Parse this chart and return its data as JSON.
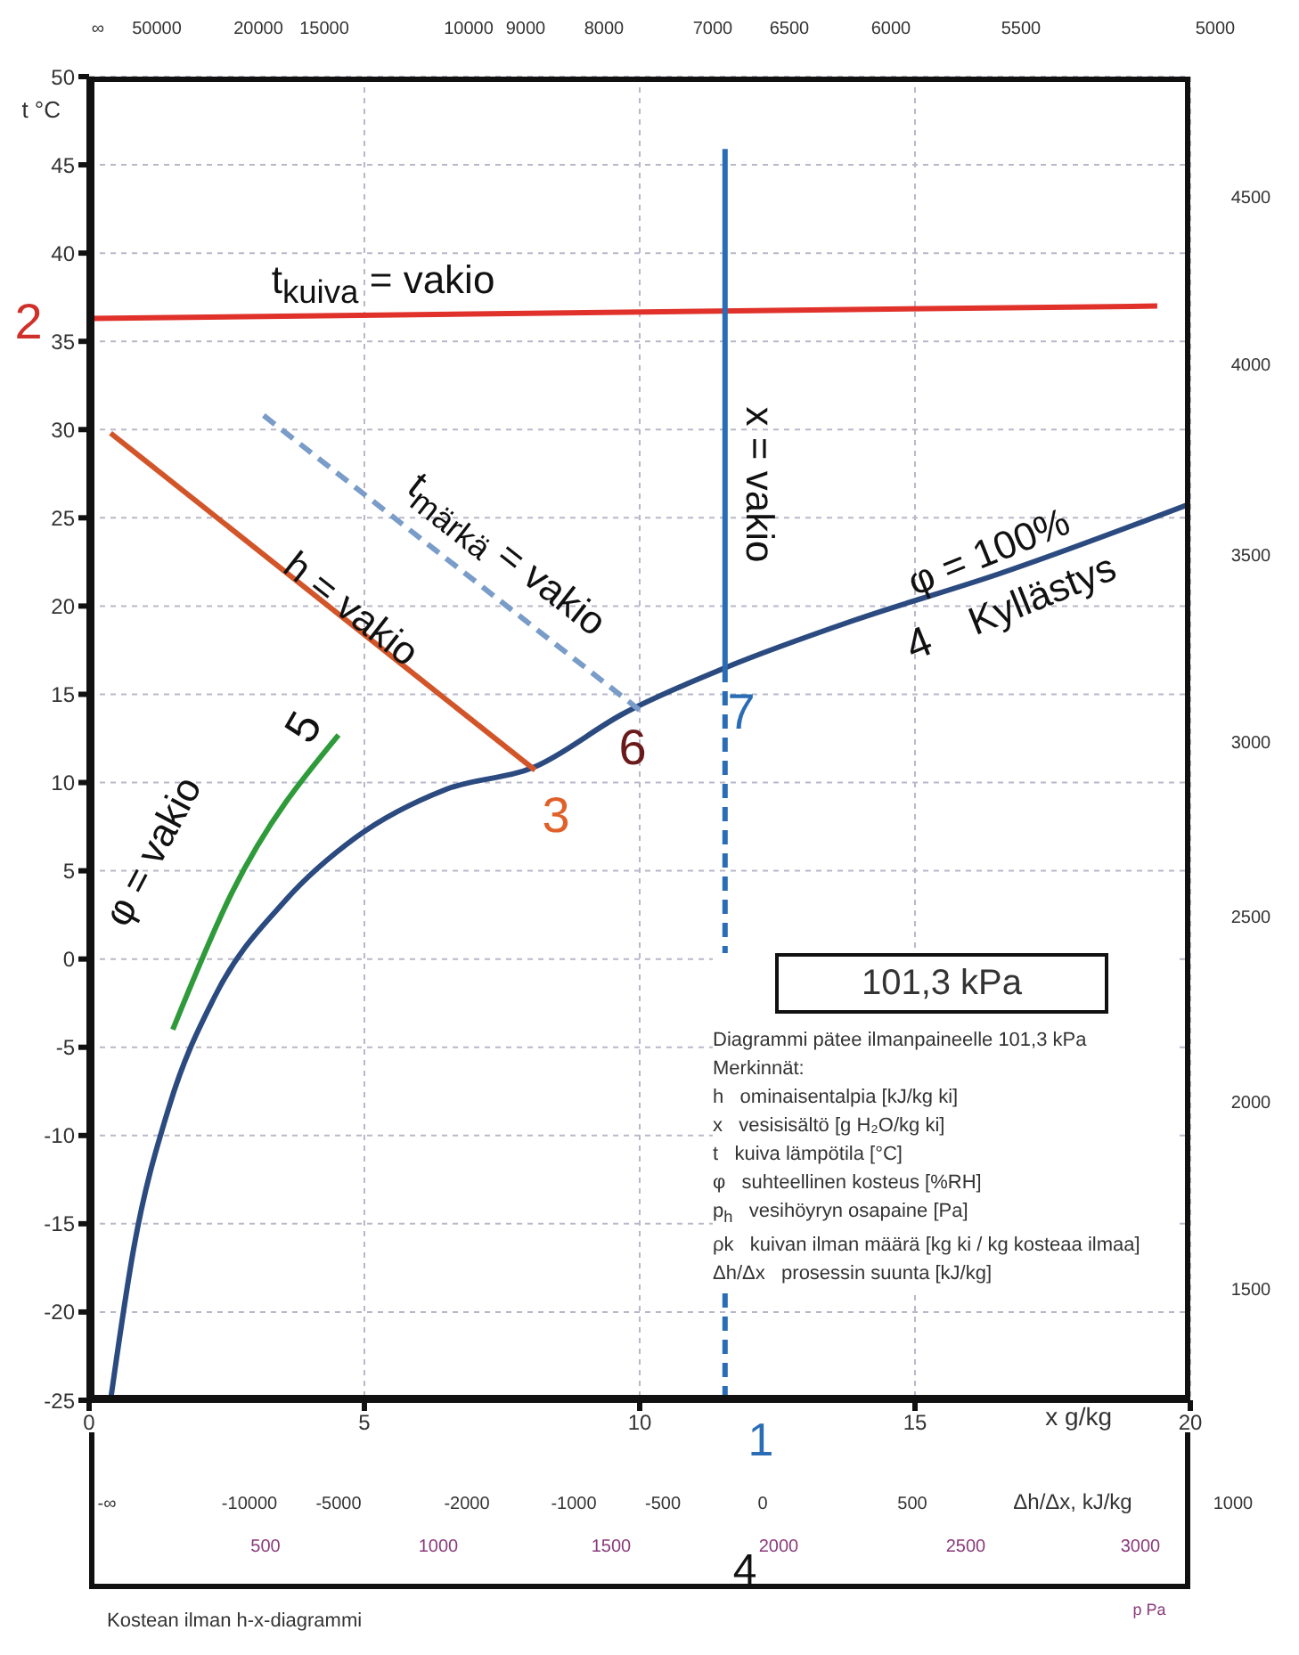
{
  "chart_data": {
    "type": "line",
    "ylabel": "t °C",
    "xlabel": "x g/kg",
    "xlim": [
      0,
      20
    ],
    "xticks": [
      0,
      5,
      10,
      15,
      20
    ],
    "ylim": [
      -25,
      50
    ],
    "yticks": [
      -25,
      -20,
      -15,
      -10,
      -5,
      0,
      5,
      10,
      15,
      20,
      25,
      30,
      35,
      40,
      45,
      50
    ],
    "grid": true,
    "marker": "none",
    "series": [
      {
        "color": "#2b4a80",
        "line_style": "solid",
        "x": [
          0.39,
          0.81,
          1.46,
          2.27,
          3.56,
          4.85,
          6.47,
          8.1,
          9.7,
          11.55,
          13.9,
          16.5,
          20
        ],
        "values": [
          -25,
          -16.4,
          -8.3,
          -2.2,
          3.3,
          6.9,
          9.6,
          10.9,
          13.9,
          16.5,
          19.2,
          21.8,
          25.8
        ]
      },
      {
        "color": "#e0312a",
        "line_style": "solid",
        "x": [
          0.06,
          19.4
        ],
        "values": [
          36.3,
          37
        ]
      },
      {
        "color": "#2a6db5",
        "line_style": "solid",
        "x": [
          11.55,
          11.55
        ],
        "values": [
          16.5,
          45.9
        ]
      },
      {
        "color": "#2a6db5",
        "line_style": "dashed",
        "x": [
          11.55,
          11.55
        ],
        "values": [
          -25,
          16.5
        ]
      },
      {
        "color": "#d2552a",
        "line_style": "solid",
        "x": [
          0.39,
          8.1
        ],
        "values": [
          29.8,
          10.7
        ]
      },
      {
        "color": "#7a9cc8",
        "line_style": "dashed",
        "x": [
          3.17,
          10.0
        ],
        "values": [
          30.8,
          14.1
        ]
      },
      {
        "color": "#2e9a3a",
        "line_style": "solid",
        "x": [
          1.52,
          2.6,
          4.53
        ],
        "values": [
          -4.0,
          3.8,
          12.7
        ]
      }
    ],
    "annotations": [
      "t$_{kuiva}$ = vakio",
      "h = vakio",
      "t$_{märkä}$ = vakio",
      "x = vakio",
      "φ = 100%",
      "4",
      "Kyllästys",
      "φ = vakio",
      "2",
      "3",
      "5",
      "6",
      "7",
      "1",
      "4",
      "∞",
      "50000",
      "20000",
      "15000",
      "10000",
      "9000",
      "8000",
      "7000",
      "6500",
      "6000",
      "5500",
      "5000",
      "4500",
      "4000",
      "3500",
      "3000",
      "2500",
      "2000",
      "1500",
      "-∞",
      "-10000",
      "-5000",
      "-2000",
      "-1000",
      "-500",
      "0",
      "500",
      "1000",
      "Δh/Δx, kJ/kg",
      "500",
      "1000",
      "1500",
      "2000",
      "2500",
      "3000",
      "p Pa",
      "101,3 kPa",
      "Diagrammi pätee ilmanpaineelle 101,3 kPa",
      "Merkinnät:",
      "h   ominaisentalpia [kJ/kg ki]",
      "x   vesisisältö [g H₂O/kg ki]",
      "t   kuiva lämpötila [°C]",
      "φ   suhteellinen kosteus [%RH]",
      "p$_{h}$   vesihöyryn osapaine [Pa]",
      "ρk   kuivan ilman määrä [kg ki / kg kosteaa ilmaa]",
      "Δh/Δx   prosessin suunta [kJ/kg]",
      "Kostean ilman h-x-diagrammi"
    ]
  }
}
